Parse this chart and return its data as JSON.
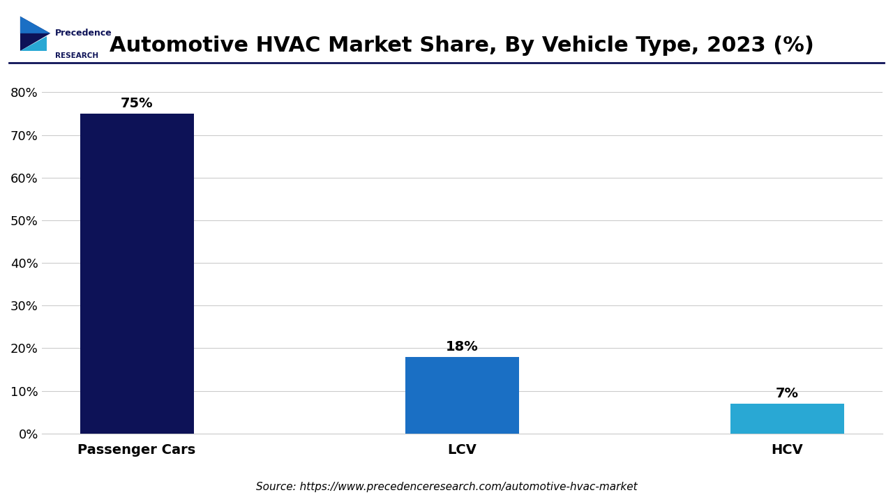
{
  "title": "Automotive HVAC Market Share, By Vehicle Type, 2023 (%)",
  "categories": [
    "Passenger Cars",
    "LCV",
    "HCV"
  ],
  "values": [
    75,
    18,
    7
  ],
  "bar_colors": [
    "#0d1257",
    "#1a6fc4",
    "#29a8d4"
  ],
  "bar_labels": [
    "75%",
    "18%",
    "7%"
  ],
  "yticks": [
    0,
    10,
    20,
    30,
    40,
    50,
    60,
    70,
    80
  ],
  "ytick_labels": [
    "0%",
    "10%",
    "20%",
    "30%",
    "40%",
    "50%",
    "60%",
    "70%",
    "80%"
  ],
  "ylim": [
    0,
    85
  ],
  "source_text": "Source: https://www.precedenceresearch.com/automotive-hvac-market",
  "background_color": "#ffffff",
  "grid_color": "#cccccc",
  "title_fontsize": 22,
  "label_fontsize": 14,
  "tick_fontsize": 13,
  "bar_label_fontsize": 14,
  "source_fontsize": 11,
  "logo_text_precedence": "Precedence",
  "logo_text_research": "RESEARCH",
  "logo_color_dark": "#0d1257",
  "logo_color_light": "#29a8d4",
  "logo_color_mid": "#1a6fc4",
  "separator_color": "#0d1257"
}
